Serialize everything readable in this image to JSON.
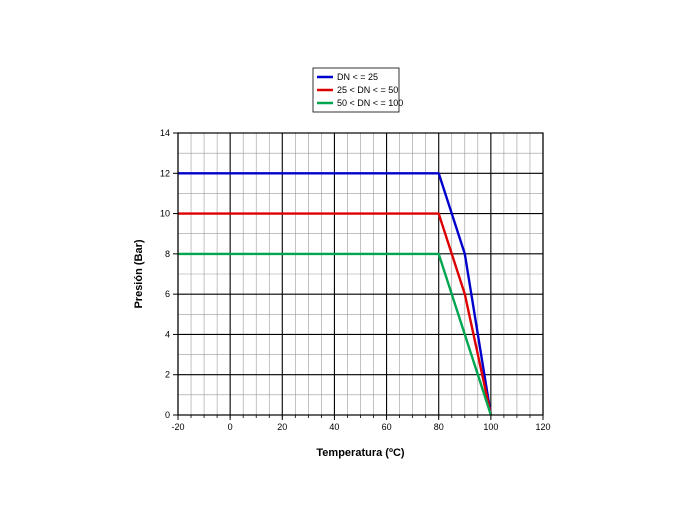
{
  "chart_data": {
    "type": "line",
    "title": "",
    "xlabel": "Temperatura (ºC)",
    "ylabel": "Presión (Bar)",
    "xlim": [
      -20,
      120
    ],
    "ylim": [
      0,
      14
    ],
    "x_major_ticks": [
      -20,
      0,
      20,
      40,
      60,
      80,
      100,
      120
    ],
    "y_major_ticks": [
      0,
      2,
      4,
      6,
      8,
      10,
      12,
      14
    ],
    "x_minor_step": 5,
    "y_minor_step": 1,
    "grid": true,
    "legend_position": "top-center",
    "series": [
      {
        "name": "DN < = 25",
        "color": "#0000cc",
        "points": [
          [
            -20,
            12
          ],
          [
            80,
            12
          ],
          [
            90,
            8
          ],
          [
            100,
            0
          ]
        ]
      },
      {
        "name": "25 < DN < = 50",
        "color": "#dd0000",
        "points": [
          [
            -20,
            10
          ],
          [
            80,
            10
          ],
          [
            90,
            6
          ],
          [
            100,
            0
          ]
        ]
      },
      {
        "name": "50 < DN < = 100",
        "color": "#00a550",
        "points": [
          [
            -20,
            8
          ],
          [
            80,
            8
          ],
          [
            100,
            0
          ]
        ]
      }
    ]
  }
}
